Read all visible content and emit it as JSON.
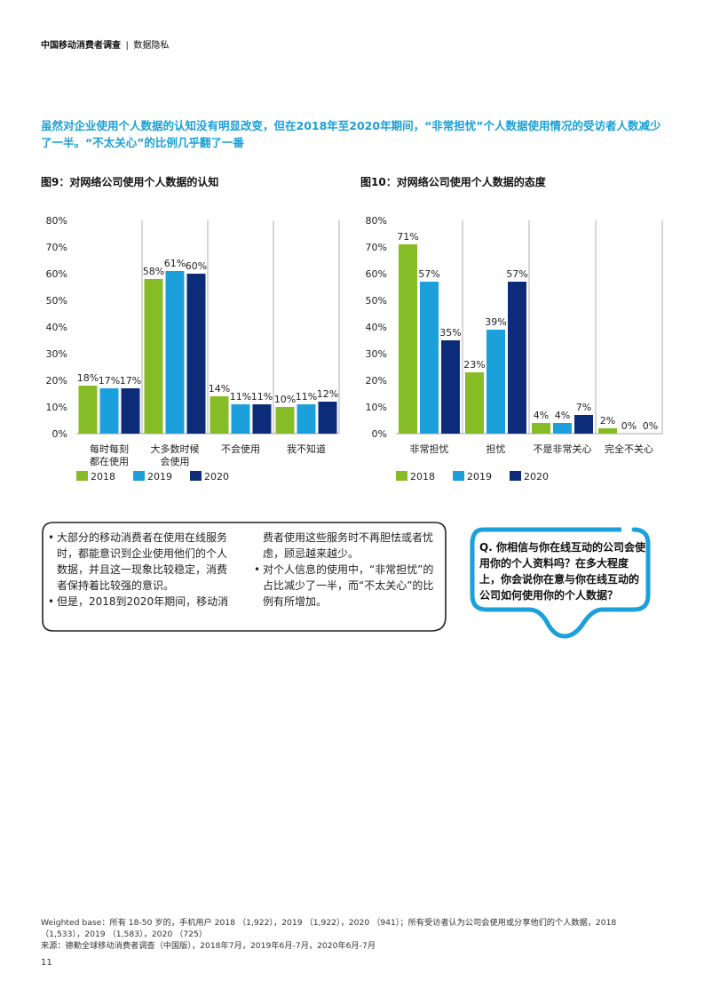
{
  "header": {
    "title": "中国移动消费者调查",
    "separator": "|",
    "section": "数据隐私"
  },
  "lead_text": "虽然对企业使用个人数据的认知没有明显改变，但在2018年至2020年期间，“非常担忧”个人数据使用情况的受访者人数减少了一半。“不太关心”的比例几乎翻了一番",
  "colors": {
    "s2018": "#86bc25",
    "s2019": "#1ba0dc",
    "s2020": "#0c2c7a",
    "accent": "#1a9fd6",
    "grid": "#999999"
  },
  "chart_data": [
    {
      "type": "bar",
      "title": "图9：对网络公司使用个人数据的认知",
      "categories": [
        [
          "每时每刻",
          "都在使用"
        ],
        [
          "大多数时候",
          "会使用"
        ],
        [
          "不会使用"
        ],
        [
          "我不知道"
        ]
      ],
      "yticks": [
        "0%",
        "10%",
        "20%",
        "30%",
        "40%",
        "50%",
        "60%",
        "70%",
        "80%"
      ],
      "ylim": [
        0,
        80
      ],
      "series": [
        {
          "name": "2018",
          "values": [
            18,
            58,
            14,
            10
          ],
          "labels": [
            "18%",
            "58%",
            "14%",
            "10%"
          ]
        },
        {
          "name": "2019",
          "values": [
            17,
            61,
            11,
            11
          ],
          "labels": [
            "17%",
            "61%",
            "11%",
            "11%"
          ]
        },
        {
          "name": "2020",
          "values": [
            17,
            60,
            11,
            12
          ],
          "labels": [
            "17%",
            "60%",
            "11%",
            "12%"
          ]
        }
      ],
      "legend": "bottom"
    },
    {
      "type": "bar",
      "title": "图10：对网络公司使用个人数据的态度",
      "categories": [
        [
          "非常担忧"
        ],
        [
          "担忧"
        ],
        [
          "不是非常关心"
        ],
        [
          "完全不关心"
        ]
      ],
      "yticks": [
        "0%",
        "10%",
        "20%",
        "30%",
        "40%",
        "50%",
        "60%",
        "70%",
        "80%"
      ],
      "ylim": [
        0,
        80
      ],
      "series": [
        {
          "name": "2018",
          "values": [
            71,
            23,
            4,
            2
          ],
          "labels": [
            "71%",
            "23%",
            "4%",
            "2%"
          ]
        },
        {
          "name": "2019",
          "values": [
            57,
            39,
            4,
            0
          ],
          "labels": [
            "57%",
            "39%",
            "4%",
            "0%"
          ]
        },
        {
          "name": "2020",
          "values": [
            35,
            57,
            7,
            0
          ],
          "labels": [
            "35%",
            "57%",
            "7%",
            "0%"
          ]
        }
      ],
      "legend": "bottom"
    }
  ],
  "bubble": {
    "left_col": {
      "b1": "大部分的移动消费者在使用在线服务时，都能意识到企业使用他们的个人数据，并且这一现象比较稳定，消费者保持着比较强的意识。",
      "b2": "但是，2018到2020年期间，移动消"
    },
    "right_col": {
      "cont": "费者使用这些服务时不再胆怯或者忧虑，顾忌越来越少。",
      "b3": "对个人信息的使用中，“非常担忧”的占比减少了一半，而“不太关心”的比例有所增加。"
    }
  },
  "question": "Q. 你相信与你在线互动的公司会使用你的个人资料吗？在多大程度上，你会说你在意与你在线互动的公司如何使用你的个人数据？",
  "footnote": {
    "line1": "Weighted base：所有 18-50 岁的，手机用户 2018 （1,922），2019 （1,922），2020 （941）；所有受访者认为公司会使用或分享他们的个人数据，2018 （1,533），2019 （1,583），2020 （725）",
    "line2": "来源：德勤全球移动消费者调查（中国版），2018年7月，2019年6月-7月，2020年6月-7月"
  },
  "page_number": "11"
}
